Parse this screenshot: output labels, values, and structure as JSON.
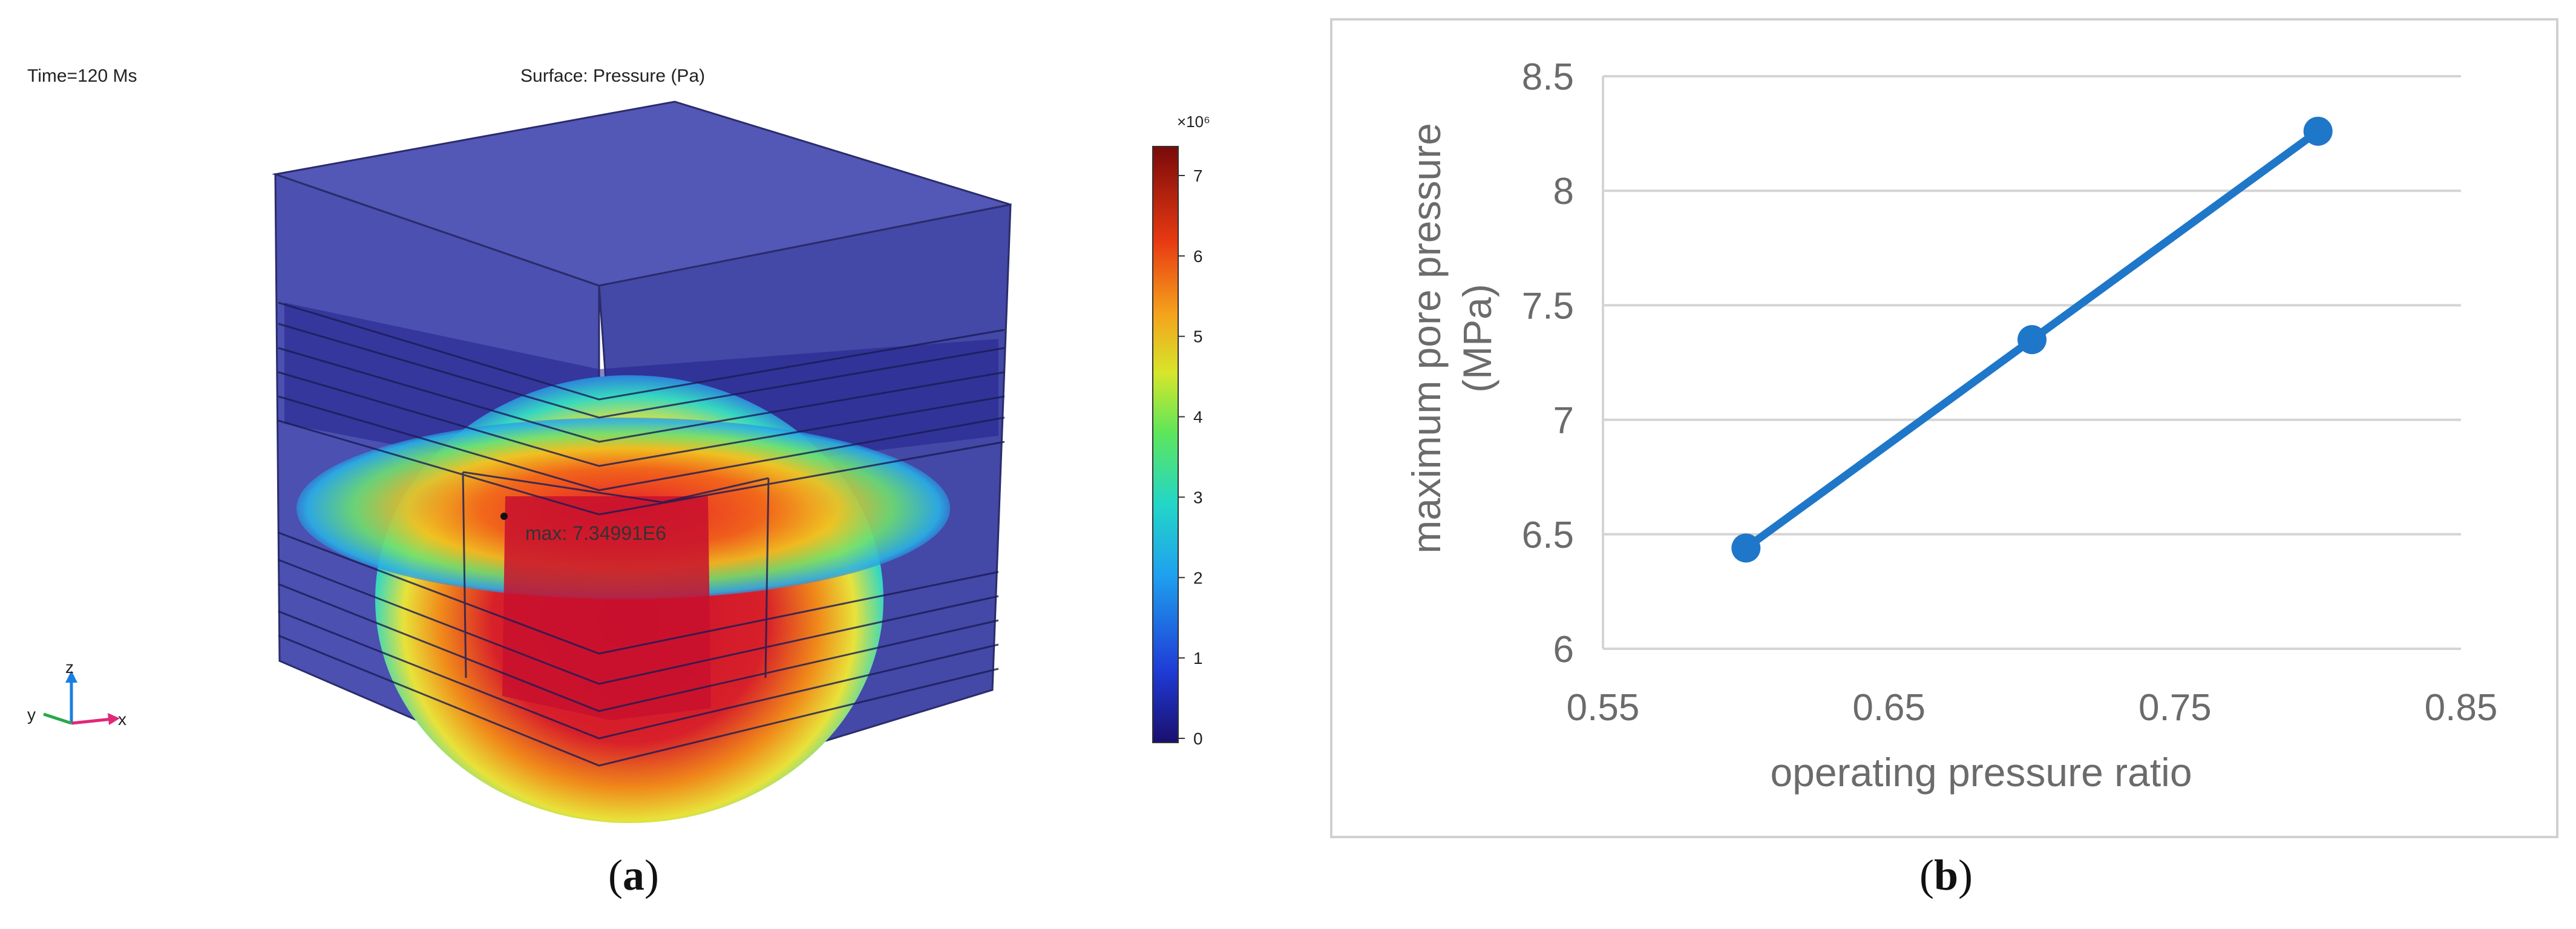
{
  "figure_a": {
    "time_label": "Time=120 Ms",
    "surface_title": "Surface: Pressure (Pa)",
    "max_annotation": "max: 7.34991E6",
    "colorbar": {
      "exponent": "×10⁶",
      "ticks": [
        "7",
        "6",
        "5",
        "4",
        "3",
        "2",
        "1",
        "0"
      ]
    },
    "axis_triad": {
      "z": "z",
      "y": "y",
      "x": "x"
    },
    "panel_label": {
      "open": "(",
      "letter": "a",
      "close": ")"
    }
  },
  "figure_b": {
    "panel_label": {
      "open": "(",
      "letter": "b",
      "close": ")"
    }
  },
  "colors": {
    "line": "#1f77c9",
    "grid": "#d4d4d4",
    "tick_text": "#6b6b6b",
    "block_blue": "#3d42a8",
    "hot_red": "#c8102e"
  },
  "chart_data": {
    "type": "line",
    "title": "",
    "xlabel": "operating pressure ratio",
    "ylabel": [
      "maximum pore pressure",
      "(MPa)"
    ],
    "xlim": [
      0.55,
      0.85
    ],
    "ylim": [
      6,
      8.5
    ],
    "xticks": [
      "0.55",
      "0.65",
      "0.75",
      "0.85"
    ],
    "yticks": [
      "6",
      "6.5",
      "7",
      "7.5",
      "8",
      "8.5"
    ],
    "grid": "horizontal",
    "series": [
      {
        "x": [
          0.6,
          0.7,
          0.8
        ],
        "y": [
          6.44,
          7.35,
          8.26
        ],
        "marker": "circle"
      }
    ]
  }
}
